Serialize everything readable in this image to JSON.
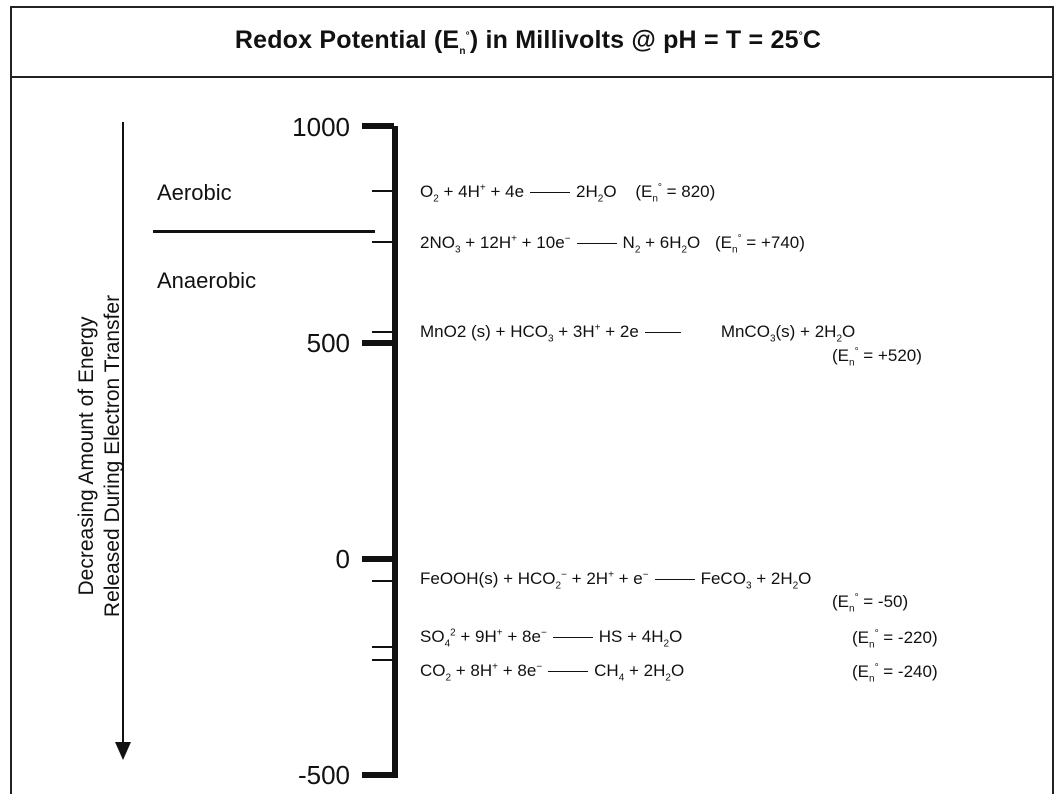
{
  "header": {
    "title_prefix": "Redox Potential (E",
    "title_sub": "n",
    "title_sup": "°",
    "title_mid": ") in Millivolts @ pH = T = 25",
    "title_deg": "°",
    "title_end": "C"
  },
  "axis": {
    "ticks": [
      "1000",
      "500",
      "0",
      "-500"
    ],
    "arrow_label_line1": "Decreasing Amount of Energy",
    "arrow_label_line2": "Released During Electron Transfer"
  },
  "zones": {
    "aerobic": "Aerobic",
    "anaerobic": "Anaerobic"
  },
  "reactions": {
    "r1": {
      "a": "O",
      "a_sub": "2",
      "b": " + 4H",
      "b_sup": "+",
      "c": " + 4e",
      "d": "2H",
      "d_sub": "2",
      "e": "O",
      "eo_pre": "(E",
      "eo_sub": "n",
      "eo_sup": "°",
      "eo_val": " = 820)"
    },
    "r2": {
      "a": "2NO",
      "a_sub": "3",
      "b": " + 12H",
      "b_sup": "+",
      "c": " + 10e",
      "c_sup": "−",
      "d": "N",
      "d_sub": "2",
      "e": " + 6H",
      "e_sub": "2",
      "f": "O",
      "eo_pre": "(E",
      "eo_sub": "n",
      "eo_sup": "°",
      "eo_val": " = +740)"
    },
    "r3": {
      "a": "MnO2 (s) + HCO",
      "a_sub": "3",
      "b": " + 3H",
      "b_sup": "+",
      "c": " + 2e",
      "d": "MnCO",
      "d_sub": "3",
      "e": "(s) + 2H",
      "e_sub": "2",
      "f": "O",
      "eo_pre": "(E",
      "eo_sub": "n",
      "eo_sup": "°",
      "eo_val": " = +520)"
    },
    "r4": {
      "a": "FeOOH(s) + HCO",
      "a_sub": "2",
      "a_sup": "−",
      "b": " + 2H",
      "b_sup": "+",
      "c": " + e",
      "c_sup": "−",
      "d": "FeCO",
      "d_sub": "3",
      "e": " + 2H",
      "e_sub": "2",
      "f": "O",
      "eo_pre": "(E",
      "eo_sub": "n",
      "eo_sup": "°",
      "eo_val": " = -50)"
    },
    "r5": {
      "a": "SO",
      "a_sub": "4",
      "a_sup": "2",
      "b": " + 9H",
      "b_sup": "+",
      "c": " + 8e",
      "c_sup": "−",
      "d": "HS + 4H",
      "d_sub": "2",
      "e": "O",
      "eo_pre": "(E",
      "eo_sub": "n",
      "eo_sup": "°",
      "eo_val": " = -220)"
    },
    "r6": {
      "a": "CO",
      "a_sub": "2",
      "b": " + 8H",
      "b_sup": "+",
      "c": " + 8e",
      "c_sup": "−",
      "d": "CH",
      "d_sub": "4",
      "e": " + 2H",
      "e_sub": "2",
      "f": "O",
      "eo_pre": "(E",
      "eo_sub": "n",
      "eo_sup": "°",
      "eo_val": " = -240)"
    }
  }
}
